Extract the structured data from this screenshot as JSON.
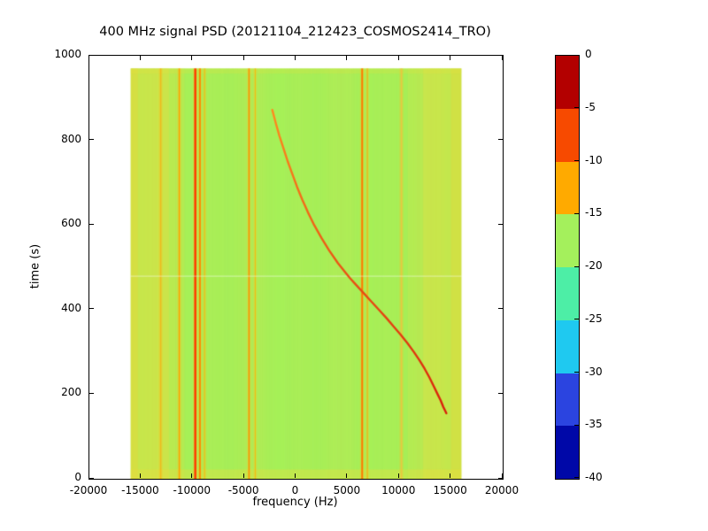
{
  "chart_data": {
    "type": "heatmap",
    "title": "400 MHz signal PSD (20121104_212423_COSMOS2414_TRO)",
    "xlabel": "frequency (Hz)",
    "ylabel": "time (s)",
    "xlim": [
      -20000,
      20000
    ],
    "ylim": [
      0,
      1000
    ],
    "xticks": [
      -20000,
      -15000,
      -10000,
      -5000,
      0,
      5000,
      10000,
      15000,
      20000
    ],
    "xtick_labels": [
      "-20000",
      "-15000",
      "-10000",
      "-5000",
      "0",
      "5000",
      "10000",
      "15000",
      "20000"
    ],
    "yticks": [
      0,
      200,
      400,
      600,
      800,
      1000
    ],
    "ytick_labels": [
      "0",
      "200",
      "400",
      "600",
      "800",
      "1000"
    ],
    "grid": false,
    "legend": "none",
    "extent": {
      "f0": -16000,
      "f1": 16000,
      "t0": 0,
      "t1": 970
    },
    "base_color": "#a5f05a",
    "bands": [
      {
        "f0": -16000,
        "f1": -12300,
        "color": "rgba(240,220,60,0.45)"
      },
      {
        "f0": -16000,
        "f1": -15300,
        "color": "rgba(244,210,50,0.30)"
      },
      {
        "f0": -12300,
        "f1": -10800,
        "color": "rgba(240,220,60,0.18)"
      },
      {
        "f0": 12300,
        "f1": 16000,
        "color": "rgba(240,220,60,0.40)"
      },
      {
        "f0": 15000,
        "f1": 16000,
        "color": "rgba(244,210,50,0.28)"
      },
      {
        "f0": 10800,
        "f1": 12300,
        "color": "rgba(240,220,60,0.18)"
      }
    ],
    "horizontal_bands": [
      {
        "t0": 0,
        "t1": 22,
        "color": "rgba(238,222,60,0.35)"
      },
      {
        "t0": 958,
        "t1": 970,
        "color": "rgba(238,222,60,0.22)"
      }
    ],
    "vertical_lines": [
      {
        "f": -13100,
        "color": "rgba(255,160,0,0.55)",
        "width": 1.5
      },
      {
        "f": -11300,
        "color": "#ffa000",
        "width": 1.5
      },
      {
        "f": -9750,
        "color": "#ff3c00",
        "width": 2.5
      },
      {
        "f": -9300,
        "color": "#ff8c00",
        "width": 2
      },
      {
        "f": -8850,
        "color": "rgba(255,176,0,0.8)",
        "width": 1
      },
      {
        "f": -4550,
        "color": "#ff9000",
        "width": 1.5
      },
      {
        "f": -3950,
        "color": "rgba(255,176,0,0.8)",
        "width": 1
      },
      {
        "f": 6400,
        "color": "#ff7a00",
        "width": 2
      },
      {
        "f": 6900,
        "color": "rgba(255,165,0,0.85)",
        "width": 1
      },
      {
        "f": 10200,
        "color": "rgba(242,192,64,0.8)",
        "width": 1.5
      }
    ],
    "horizontal_lines": [
      {
        "t": 480,
        "color": "rgba(255,255,255,0.5)",
        "width": 1
      }
    ],
    "doppler_track": {
      "color_start": "#ff8c1e",
      "color_end": "#d8200a",
      "width": 2.4,
      "points": [
        [
          872,
          -2300
        ],
        [
          840,
          -1950
        ],
        [
          810,
          -1600
        ],
        [
          780,
          -1200
        ],
        [
          750,
          -800
        ],
        [
          720,
          -350
        ],
        [
          690,
          100
        ],
        [
          660,
          600
        ],
        [
          630,
          1150
        ],
        [
          600,
          1750
        ],
        [
          570,
          2450
        ],
        [
          540,
          3200
        ],
        [
          510,
          4050
        ],
        [
          490,
          4700
        ],
        [
          475,
          5200
        ],
        [
          460,
          5750
        ],
        [
          440,
          6500
        ],
        [
          420,
          7250
        ],
        [
          400,
          8000
        ],
        [
          380,
          8750
        ],
        [
          360,
          9450
        ],
        [
          340,
          10150
        ],
        [
          320,
          10800
        ],
        [
          300,
          11400
        ],
        [
          280,
          11950
        ],
        [
          260,
          12450
        ],
        [
          240,
          12900
        ],
        [
          220,
          13300
        ],
        [
          200,
          13700
        ],
        [
          185,
          14000
        ],
        [
          170,
          14250
        ],
        [
          160,
          14450
        ],
        [
          155,
          14550
        ]
      ]
    },
    "colorbar": {
      "range_db": [
        0,
        -40
      ],
      "tick_labels": [
        "0",
        "-5",
        "-10",
        "-15",
        "-20",
        "-25",
        "-30",
        "-35",
        "-40"
      ],
      "band_colors_top_to_bottom": [
        "#b30000",
        "#f74a00",
        "#ffaa00",
        "#a4f05c",
        "#4deea6",
        "#1fc9f0",
        "#2b44e0",
        "#0008a8"
      ]
    }
  }
}
